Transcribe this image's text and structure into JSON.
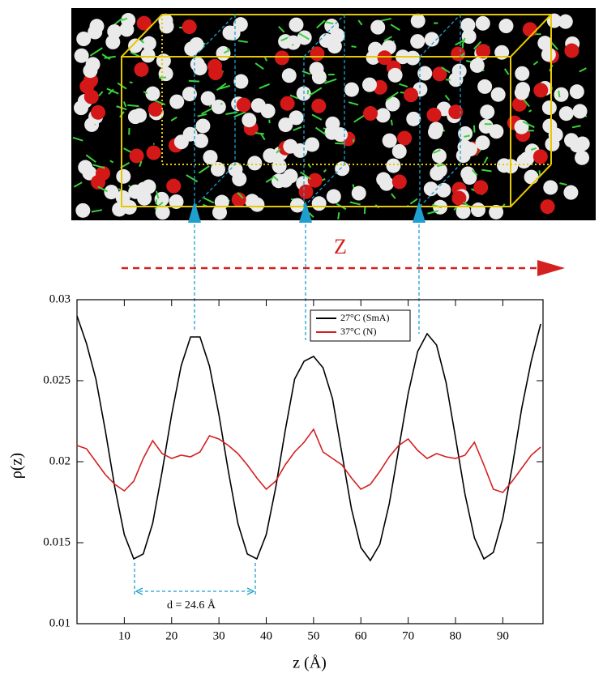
{
  "chart_data": {
    "type": "line",
    "xlabel": "z (Å)",
    "ylabel": "ρ(z)",
    "annotations": [
      "Z",
      "d = 24.6 Å"
    ],
    "x": [
      0,
      2,
      4,
      6,
      8,
      10,
      12,
      14,
      16,
      18,
      20,
      22,
      24,
      26,
      28,
      30,
      32,
      34,
      36,
      38,
      40,
      42,
      44,
      46,
      48,
      50,
      52,
      54,
      56,
      58,
      60,
      62,
      64,
      66,
      68,
      70,
      72,
      74,
      76,
      78,
      80,
      82,
      84,
      86,
      88,
      90,
      92,
      94,
      96,
      98
    ],
    "series": [
      {
        "name": "27°C (SmA)",
        "color": "#000000",
        "values": [
          0.029,
          0.0273,
          0.0251,
          0.0219,
          0.0184,
          0.0155,
          0.014,
          0.0143,
          0.0162,
          0.0194,
          0.0229,
          0.0259,
          0.0277,
          0.0277,
          0.0259,
          0.0229,
          0.0194,
          0.0162,
          0.0143,
          0.014,
          0.0155,
          0.0184,
          0.0219,
          0.0251,
          0.0262,
          0.0265,
          0.0258,
          0.0239,
          0.0205,
          0.0171,
          0.0147,
          0.0139,
          0.0149,
          0.0174,
          0.0208,
          0.0242,
          0.0268,
          0.0279,
          0.0272,
          0.0249,
          0.0215,
          0.018,
          0.0153,
          0.014,
          0.0144,
          0.0165,
          0.0197,
          0.0233,
          0.0262,
          0.0285
        ]
      },
      {
        "name": "37°C (N)",
        "color": "#d42020",
        "values": [
          0.021,
          0.0208,
          0.02,
          0.0192,
          0.0186,
          0.0182,
          0.0188,
          0.0202,
          0.0213,
          0.0205,
          0.0202,
          0.0204,
          0.0203,
          0.0206,
          0.0216,
          0.0214,
          0.021,
          0.0205,
          0.0198,
          0.019,
          0.0183,
          0.0188,
          0.0198,
          0.0206,
          0.0212,
          0.022,
          0.0206,
          0.0202,
          0.0198,
          0.019,
          0.0183,
          0.0186,
          0.0194,
          0.0203,
          0.021,
          0.0214,
          0.0207,
          0.0202,
          0.0205,
          0.0203,
          0.0202,
          0.0204,
          0.0212,
          0.0198,
          0.0183,
          0.0181,
          0.0188,
          0.0196,
          0.0204,
          0.0209
        ]
      }
    ],
    "xlim": [
      0,
      98.5
    ],
    "ylim": [
      0.01,
      0.03
    ],
    "xticks": [
      10,
      20,
      30,
      40,
      50,
      60,
      70,
      80,
      90
    ],
    "yticks": [
      0.01,
      0.015,
      0.02,
      0.025,
      0.03
    ],
    "legend": "top-center"
  }
}
